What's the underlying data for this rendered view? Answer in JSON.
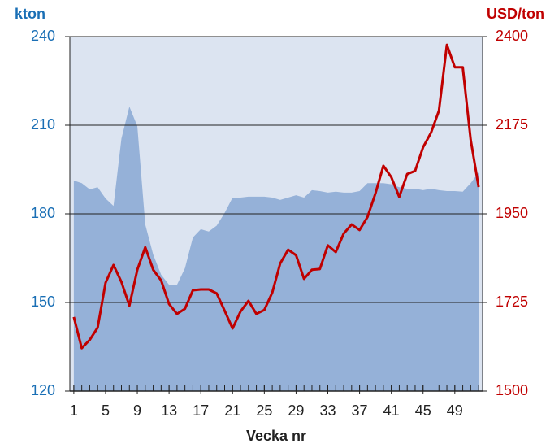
{
  "chart_data": {
    "type": "area_line",
    "ylabel": "kton",
    "y2label": "USD/ton",
    "xlabel": "Vecka nr",
    "x": [
      1,
      2,
      3,
      4,
      5,
      6,
      7,
      8,
      9,
      10,
      11,
      12,
      13,
      14,
      15,
      16,
      17,
      18,
      19,
      20,
      21,
      22,
      23,
      24,
      25,
      26,
      27,
      28,
      29,
      30,
      31,
      32,
      33,
      34,
      35,
      36,
      37,
      38,
      39,
      40,
      41,
      42,
      43,
      44,
      45,
      46,
      47,
      48,
      49,
      50,
      51,
      52
    ],
    "xlim": [
      0.5,
      52.5
    ],
    "xticks": [
      1,
      5,
      9,
      13,
      17,
      21,
      25,
      29,
      33,
      37,
      41,
      45,
      49
    ],
    "ylim": [
      120,
      240
    ],
    "yticks": [
      120,
      150,
      180,
      210,
      240
    ],
    "y2lim": [
      1500,
      2400
    ],
    "y2ticks": [
      1500,
      1725,
      1950,
      2175,
      2400
    ],
    "grid": true,
    "series": [
      {
        "type": "area",
        "color": "#95b1d8",
        "values": [
          191.3,
          190.4,
          188.3,
          189,
          185.2,
          182.7,
          205.5,
          216.3,
          209.7,
          176.4,
          166.2,
          159.4,
          156,
          156,
          161.6,
          172,
          174.8,
          174,
          176,
          180.3,
          185.5,
          185.5,
          185.8,
          185.8,
          185.8,
          185.5,
          184.7,
          185.5,
          186.3,
          185.5,
          188,
          187.7,
          187.2,
          187.5,
          187.2,
          187.2,
          187.7,
          190.4,
          190.4,
          190.4,
          190,
          189,
          188.5,
          188.5,
          188,
          188.5,
          188,
          187.7,
          187.7,
          187.5,
          190.4,
          194
        ]
      },
      {
        "type": "line",
        "axis": "y2",
        "color": "#c00000",
        "values": [
          1688,
          1609,
          1630,
          1661,
          1775,
          1820,
          1777,
          1717,
          1808,
          1865,
          1808,
          1781,
          1721,
          1696,
          1709,
          1756,
          1758,
          1758,
          1748,
          1704,
          1659,
          1702,
          1729,
          1696,
          1706,
          1750,
          1824,
          1859,
          1845,
          1785,
          1808,
          1810,
          1870,
          1853,
          1900,
          1923,
          1909,
          1942,
          2002,
          2072,
          2043,
          1993,
          2051,
          2059,
          2119,
          2156,
          2212,
          2379,
          2322,
          2322,
          2138,
          2018
        ]
      }
    ]
  }
}
